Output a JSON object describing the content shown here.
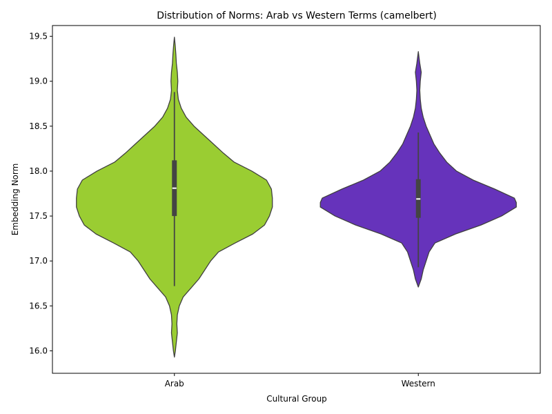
{
  "chart_data": {
    "type": "violin",
    "title": "Distribution of Norms: Arab vs Western Terms (camelbert)",
    "xlabel": "Cultural Group",
    "ylabel": "Embedding Norm",
    "ylim": [
      15.75,
      19.62
    ],
    "yticks": [
      16.0,
      16.5,
      17.0,
      17.5,
      18.0,
      18.5,
      19.0,
      19.5
    ],
    "ytick_labels": [
      "16.0",
      "16.5",
      "17.0",
      "17.5",
      "18.0",
      "18.5",
      "19.0",
      "19.5"
    ],
    "categories": [
      "Arab",
      "Western"
    ],
    "series": [
      {
        "name": "Arab",
        "color": "#9ACD32",
        "median": 17.81,
        "q1": 17.5,
        "q3": 18.12,
        "whisker_low": 16.72,
        "whisker_high": 18.88,
        "density_profile": [
          [
            15.93,
            0.0
          ],
          [
            16.0,
            0.01
          ],
          [
            16.1,
            0.02
          ],
          [
            16.2,
            0.03
          ],
          [
            16.3,
            0.025
          ],
          [
            16.4,
            0.03
          ],
          [
            16.5,
            0.05
          ],
          [
            16.6,
            0.09
          ],
          [
            16.7,
            0.17
          ],
          [
            16.8,
            0.25
          ],
          [
            16.9,
            0.31
          ],
          [
            17.0,
            0.37
          ],
          [
            17.1,
            0.45
          ],
          [
            17.2,
            0.62
          ],
          [
            17.3,
            0.8
          ],
          [
            17.4,
            0.92
          ],
          [
            17.5,
            0.97
          ],
          [
            17.6,
            1.0
          ],
          [
            17.7,
            1.0
          ],
          [
            17.8,
            0.99
          ],
          [
            17.9,
            0.94
          ],
          [
            18.0,
            0.79
          ],
          [
            18.1,
            0.61
          ],
          [
            18.2,
            0.5
          ],
          [
            18.3,
            0.4
          ],
          [
            18.4,
            0.3
          ],
          [
            18.5,
            0.2
          ],
          [
            18.6,
            0.12
          ],
          [
            18.7,
            0.07
          ],
          [
            18.8,
            0.04
          ],
          [
            18.9,
            0.03
          ],
          [
            19.0,
            0.035
          ],
          [
            19.1,
            0.03
          ],
          [
            19.2,
            0.02
          ],
          [
            19.3,
            0.015
          ],
          [
            19.4,
            0.008
          ],
          [
            19.49,
            0.0
          ]
        ]
      },
      {
        "name": "Western",
        "color": "#6633BB",
        "median": 17.69,
        "q1": 17.48,
        "q3": 17.91,
        "whisker_low": 16.93,
        "whisker_high": 18.43,
        "density_profile": [
          [
            16.71,
            0.0
          ],
          [
            16.8,
            0.03
          ],
          [
            16.9,
            0.05
          ],
          [
            17.0,
            0.08
          ],
          [
            17.1,
            0.11
          ],
          [
            17.2,
            0.17
          ],
          [
            17.3,
            0.38
          ],
          [
            17.4,
            0.64
          ],
          [
            17.5,
            0.85
          ],
          [
            17.6,
            1.0
          ],
          [
            17.65,
            1.0
          ],
          [
            17.7,
            0.98
          ],
          [
            17.8,
            0.78
          ],
          [
            17.9,
            0.56
          ],
          [
            18.0,
            0.39
          ],
          [
            18.1,
            0.29
          ],
          [
            18.2,
            0.22
          ],
          [
            18.3,
            0.16
          ],
          [
            18.4,
            0.12
          ],
          [
            18.5,
            0.08
          ],
          [
            18.6,
            0.05
          ],
          [
            18.7,
            0.03
          ],
          [
            18.8,
            0.02
          ],
          [
            18.9,
            0.015
          ],
          [
            19.0,
            0.02
          ],
          [
            19.1,
            0.03
          ],
          [
            19.2,
            0.015
          ],
          [
            19.33,
            0.0
          ]
        ]
      }
    ]
  }
}
